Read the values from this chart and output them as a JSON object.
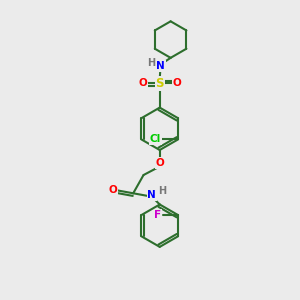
{
  "background_color": "#ebebeb",
  "bond_color": "#2d6e2d",
  "atom_colors": {
    "N": "#0000ff",
    "O": "#ff0000",
    "S": "#cccc00",
    "Cl": "#00cc00",
    "F": "#cc00cc",
    "H": "#777777",
    "C": "#2d6e2d"
  },
  "figsize": [
    3.0,
    3.0
  ],
  "dpi": 100
}
